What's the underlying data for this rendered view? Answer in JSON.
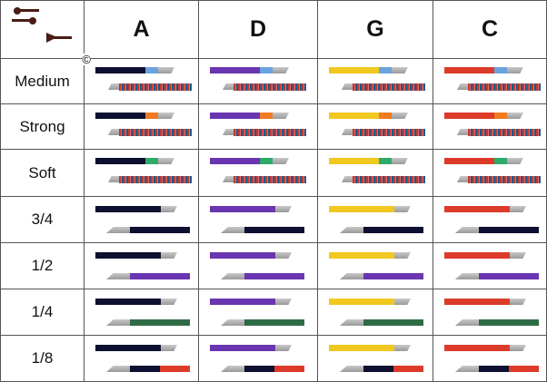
{
  "corner": {
    "icon": "tuning-pegs-and-string-icon",
    "copyright": "©"
  },
  "columns": [
    {
      "label": "A",
      "color": "#0d1030"
    },
    {
      "label": "D",
      "color": "#6a35b0"
    },
    {
      "label": "G",
      "color": "#f0c820"
    },
    {
      "label": "C",
      "color": "#dd3b2a"
    }
  ],
  "rows": [
    {
      "label": "Medium",
      "ring": "#6aa3e0",
      "bottom": "coil"
    },
    {
      "label": "Strong",
      "ring": "#f07a20",
      "bottom": "coil"
    },
    {
      "label": "Soft",
      "ring": "#2eaa6a",
      "bottom": "coil"
    },
    {
      "label": "3/4",
      "bottom_colors": [
        "#0d1030"
      ]
    },
    {
      "label": "1/2",
      "bottom_colors": [
        "#6a35b0"
      ]
    },
    {
      "label": "1/4",
      "bottom_colors": [
        "#2f6b45"
      ]
    },
    {
      "label": "1/8",
      "bottom_colors": [
        "#0d1030",
        "#dd3b2a"
      ]
    }
  ]
}
